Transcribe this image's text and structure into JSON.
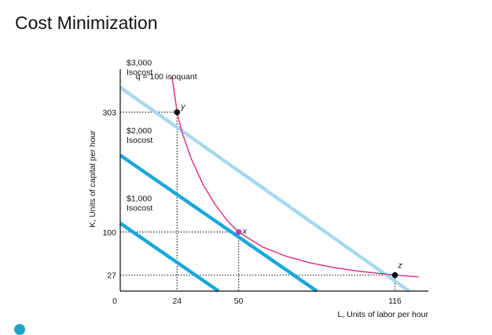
{
  "slide": {
    "title": "Cost Minimization"
  },
  "colors": {
    "isocost_3000": "#a8d8ef",
    "isocost_2000": "#1aa8dc",
    "isocost_1000": "#1aa8dc",
    "isoquant": "#e0287a",
    "point_x": "#a64bb8",
    "points": "#111111"
  },
  "chart_data": {
    "type": "line",
    "title": "",
    "xlabel": "L, Units of labor per hour",
    "ylabel": "K, Units of capital per hour",
    "xlim": [
      0,
      126
    ],
    "ylim": [
      0,
      363
    ],
    "origin_label": "0",
    "xticks": [
      24,
      50,
      116
    ],
    "yticks": [
      27,
      100,
      303
    ],
    "isocosts": [
      {
        "label_line1": "$3,000",
        "label_line2": "Isocost",
        "points": [
          [
            0,
            345
          ],
          [
            122,
            0
          ]
        ]
      },
      {
        "label_line1": "$2,000",
        "label_line2": "Isocost",
        "points": [
          [
            0,
            230
          ],
          [
            83,
            0
          ]
        ]
      },
      {
        "label_line1": "$1,000",
        "label_line2": "Isocost",
        "points": [
          [
            0,
            115
          ],
          [
            41.5,
            0
          ]
        ]
      }
    ],
    "isoquant": {
      "label": "q = 100 isoquant",
      "points": [
        [
          21.8,
          363
        ],
        [
          22.5,
          346
        ],
        [
          24,
          303
        ],
        [
          26,
          270
        ],
        [
          30,
          224
        ],
        [
          35,
          180
        ],
        [
          40,
          147
        ],
        [
          45,
          120
        ],
        [
          50,
          100
        ],
        [
          60,
          75
        ],
        [
          70,
          59
        ],
        [
          80,
          48
        ],
        [
          90,
          40
        ],
        [
          100,
          34
        ],
        [
          116,
          27
        ],
        [
          126,
          24
        ]
      ]
    },
    "points": [
      {
        "label": "y",
        "x": 24,
        "y": 303
      },
      {
        "label": "x",
        "x": 50,
        "y": 100
      },
      {
        "label": "z",
        "x": 116,
        "y": 27
      }
    ]
  }
}
